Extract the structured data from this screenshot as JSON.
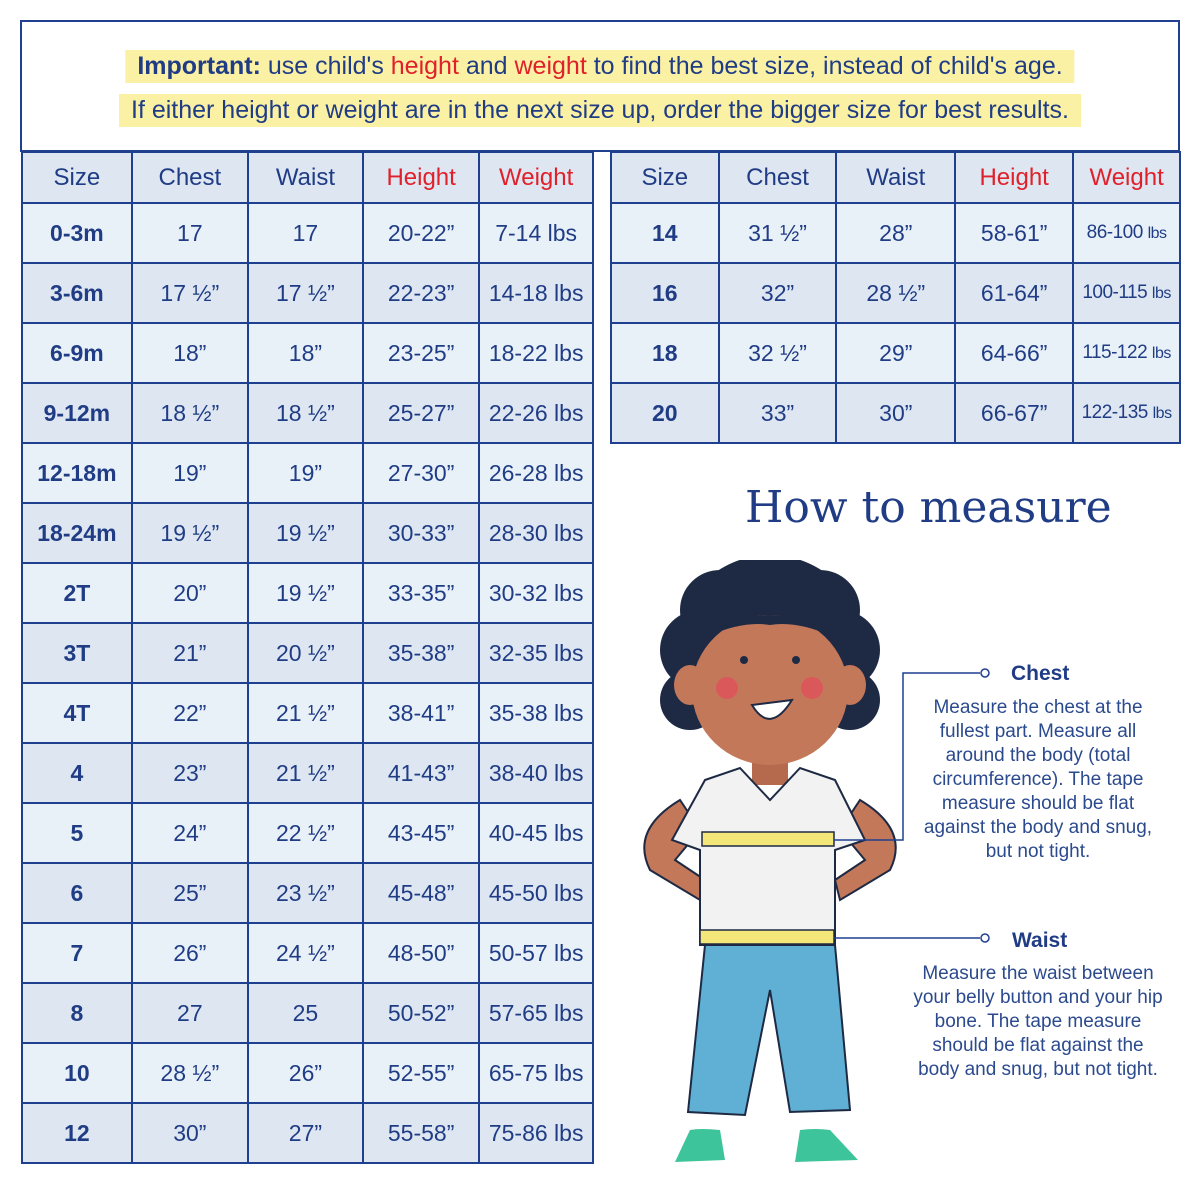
{
  "notice": {
    "line1_bold": "Important:",
    "line1_a": " use child's ",
    "line1_height": "height",
    "line1_b": " and ",
    "line1_weight": "weight",
    "line1_c": " to find the best size, instead of child's age.",
    "line2": "If either height or weight are in the next size up, order the bigger size for best results."
  },
  "columns": [
    "Size",
    "Chest",
    "Waist",
    "Height",
    "Weight"
  ],
  "left_table": [
    [
      "0-3m",
      "17",
      "17",
      "20-22”",
      "7-14 lbs"
    ],
    [
      "3-6m",
      "17 ½”",
      "17 ½”",
      "22-23”",
      "14-18 lbs"
    ],
    [
      "6-9m",
      "18”",
      "18”",
      "23-25”",
      "18-22 lbs"
    ],
    [
      "9-12m",
      "18 ½”",
      "18 ½”",
      "25-27”",
      "22-26 lbs"
    ],
    [
      "12-18m",
      "19”",
      "19”",
      "27-30”",
      "26-28 lbs"
    ],
    [
      "18-24m",
      "19 ½”",
      "19 ½”",
      "30-33”",
      "28-30 lbs"
    ],
    [
      "2T",
      "20”",
      "19 ½”",
      "33-35”",
      "30-32 lbs"
    ],
    [
      "3T",
      "21”",
      "20 ½”",
      "35-38”",
      "32-35 lbs"
    ],
    [
      "4T",
      "22”",
      "21 ½”",
      "38-41”",
      "35-38 lbs"
    ],
    [
      "4",
      "23”",
      "21 ½”",
      "41-43”",
      "38-40 lbs"
    ],
    [
      "5",
      "24”",
      "22 ½”",
      "43-45”",
      "40-45 lbs"
    ],
    [
      "6",
      "25”",
      "23 ½”",
      "45-48”",
      "45-50 lbs"
    ],
    [
      "7",
      "26”",
      "24 ½”",
      "48-50”",
      "50-57 lbs"
    ],
    [
      "8",
      "27",
      "25",
      "50-52”",
      "57-65 lbs"
    ],
    [
      "10",
      "28 ½”",
      "26”",
      "52-55”",
      "65-75 lbs"
    ],
    [
      "12",
      "30”",
      "27”",
      "55-58”",
      "75-86 lbs"
    ]
  ],
  "right_table": [
    [
      "14",
      "31 ½”",
      "28”",
      "58-61”",
      "86-100 lbs"
    ],
    [
      "16",
      "32”",
      "28 ½”",
      "61-64”",
      "100-115 lbs"
    ],
    [
      "18",
      "32 ½”",
      "29”",
      "64-66”",
      "115-122 lbs"
    ],
    [
      "20",
      "33”",
      "30”",
      "66-67”",
      "122-135 lbs"
    ]
  ],
  "measure": {
    "title": "How to measure",
    "chest_label": "Chest",
    "chest_text": "Measure the chest at the fullest part. Measure all around the body (total circumference). The tape measure should be flat against the body and snug, but not tight.",
    "waist_label": "Waist",
    "waist_text": "Measure the waist between your belly button and your hip bone. The tape measure should be flat against the body and snug, but not tight."
  },
  "colors": {
    "border": "#1f3f8f",
    "text": "#1f3c85",
    "accent_red": "#e0202a",
    "highlight": "#fbf1a4",
    "header_bg": "#dde6f1"
  }
}
